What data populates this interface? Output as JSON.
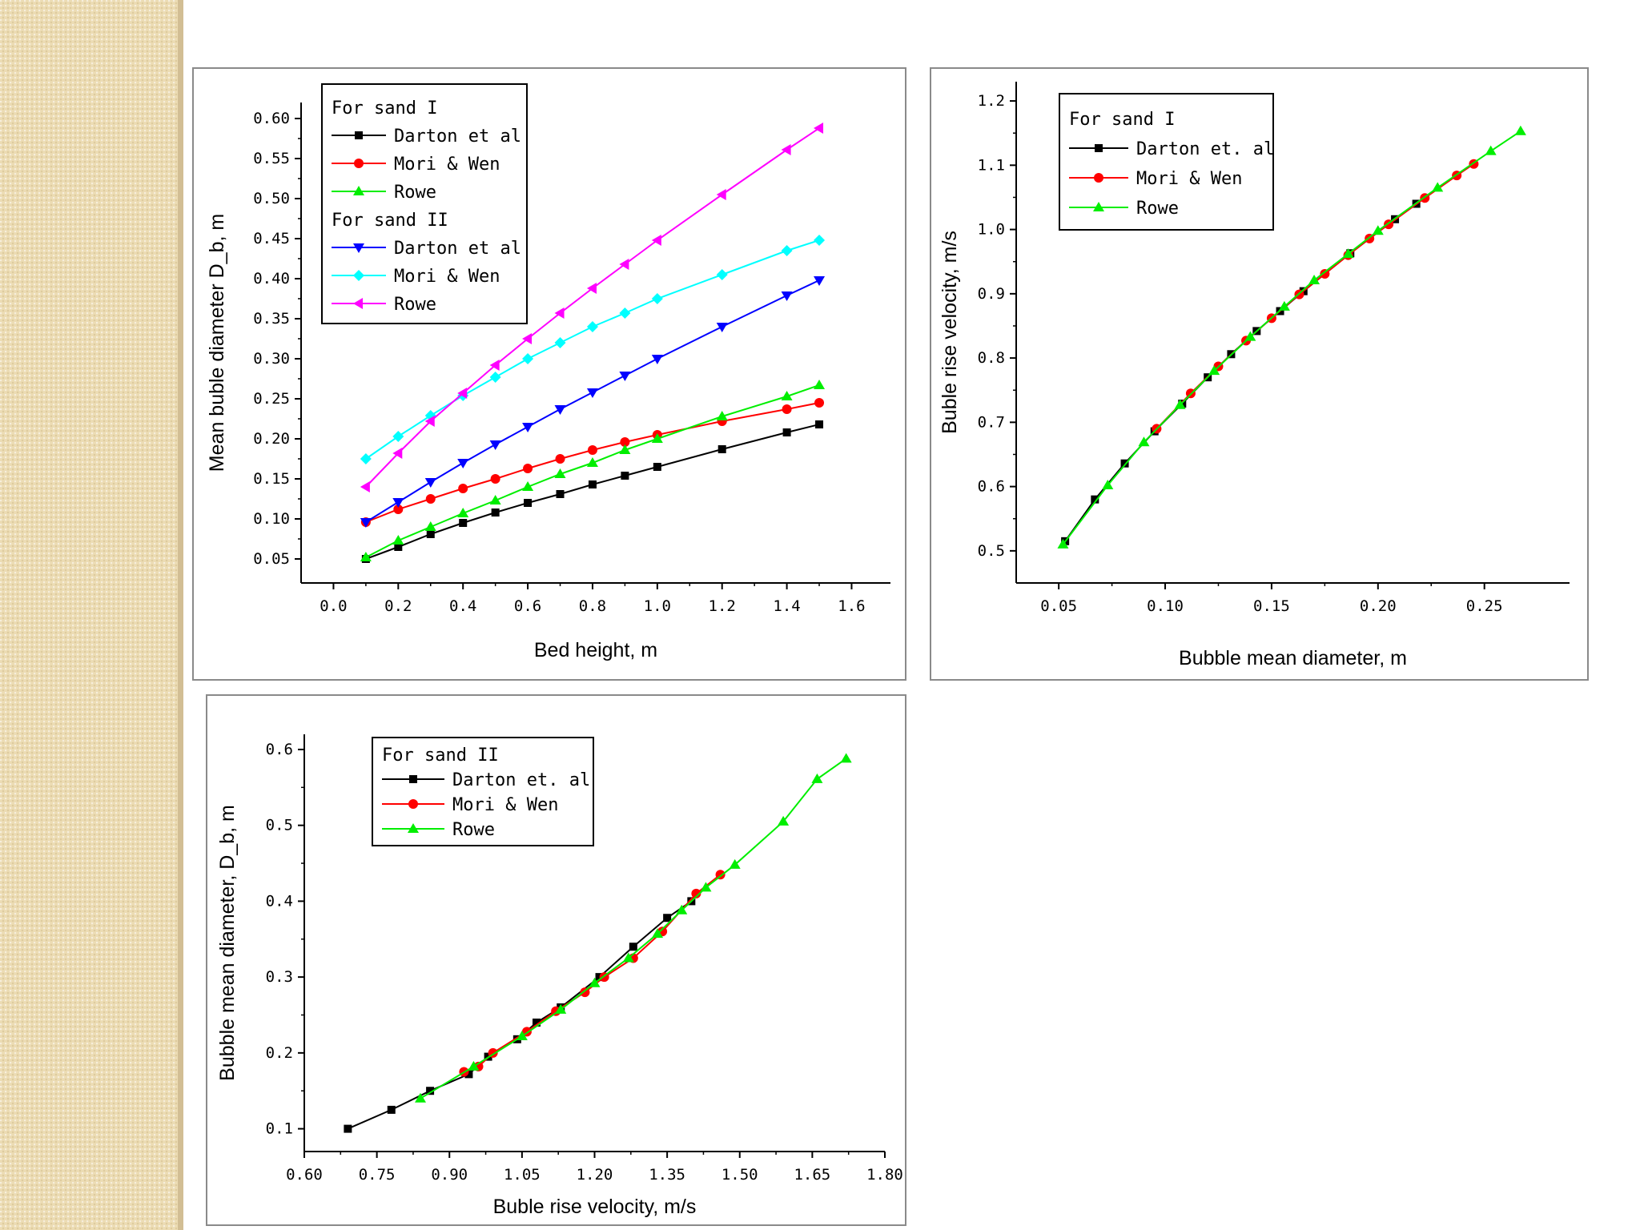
{
  "chart_data": [
    {
      "type": "line",
      "id": "chart1",
      "xlabel": "Bed height, m",
      "ylabel": "Mean buble diameter  D_b, m",
      "xlim": [
        -0.1,
        1.72
      ],
      "ylim": [
        0.02,
        0.62
      ],
      "xticks": [
        "0.0",
        "0.2",
        "0.4",
        "0.6",
        "0.8",
        "1.0",
        "1.2",
        "1.4",
        "1.6"
      ],
      "yticks": [
        "0.05",
        "0.10",
        "0.15",
        "0.20",
        "0.25",
        "0.30",
        "0.35",
        "0.40",
        "0.45",
        "0.50",
        "0.55",
        "0.60"
      ],
      "legend_groups": [
        "For sand I",
        "For sand II"
      ],
      "x": [
        0.1,
        0.2,
        0.3,
        0.4,
        0.5,
        0.6,
        0.7,
        0.8,
        0.9,
        1.0,
        1.2,
        1.4,
        1.5
      ],
      "series": [
        {
          "name": "Darton et al",
          "group": "For sand I",
          "color": "#000000",
          "marker": "square",
          "values": [
            0.05,
            0.065,
            0.081,
            0.095,
            0.108,
            0.12,
            0.131,
            0.143,
            0.154,
            0.165,
            0.187,
            0.208,
            0.218
          ]
        },
        {
          "name": "Mori & Wen",
          "group": "For sand I",
          "color": "#ff0000",
          "marker": "circle",
          "values": [
            0.096,
            0.112,
            0.125,
            0.138,
            0.15,
            0.163,
            0.175,
            0.186,
            0.196,
            0.205,
            0.222,
            0.237,
            0.245
          ]
        },
        {
          "name": "Rowe",
          "group": "For sand I",
          "color": "#00ee00",
          "marker": "triangle-up",
          "values": [
            0.052,
            0.073,
            0.09,
            0.107,
            0.123,
            0.14,
            0.156,
            0.17,
            0.186,
            0.2,
            0.228,
            0.253,
            0.267
          ]
        },
        {
          "name": "Darton et al",
          "group": "For sand II",
          "color": "#0000ff",
          "marker": "triangle-down",
          "values": [
            0.096,
            0.121,
            0.146,
            0.17,
            0.193,
            0.215,
            0.237,
            0.258,
            0.279,
            0.3,
            0.34,
            0.379,
            0.398
          ]
        },
        {
          "name": "Mori & Wen",
          "group": "For sand II",
          "color": "#00ffff",
          "marker": "diamond",
          "values": [
            0.175,
            0.203,
            0.229,
            0.254,
            0.277,
            0.3,
            0.32,
            0.34,
            0.357,
            0.375,
            0.405,
            0.435,
            0.448
          ]
        },
        {
          "name": "Rowe",
          "group": "For sand II",
          "color": "#ff00ff",
          "marker": "triangle-left",
          "values": [
            0.14,
            0.182,
            0.222,
            0.257,
            0.292,
            0.325,
            0.357,
            0.388,
            0.418,
            0.448,
            0.505,
            0.561,
            0.588
          ]
        }
      ]
    },
    {
      "type": "line",
      "id": "chart2",
      "xlabel": "Bubble mean diameter, m",
      "ylabel": "Buble rise velocity, m/s",
      "xlim": [
        0.03,
        0.29
      ],
      "ylim": [
        0.45,
        1.23
      ],
      "xticks": [
        "0.05",
        "0.10",
        "0.15",
        "0.20",
        "0.25"
      ],
      "yticks": [
        "0.5",
        "0.6",
        "0.7",
        "0.8",
        "0.9",
        "1.0",
        "1.1",
        "1.2"
      ],
      "legend_groups": [
        "For sand I"
      ],
      "series": [
        {
          "name": "Darton et. al",
          "color": "#000000",
          "marker": "square",
          "x": [
            0.053,
            0.067,
            0.081,
            0.095,
            0.108,
            0.12,
            0.131,
            0.143,
            0.154,
            0.165,
            0.187,
            0.208,
            0.218
          ],
          "values": [
            0.515,
            0.58,
            0.636,
            0.686,
            0.729,
            0.77,
            0.806,
            0.842,
            0.873,
            0.904,
            0.963,
            1.016,
            1.04
          ]
        },
        {
          "name": "Mori & Wen",
          "color": "#ff0000",
          "marker": "circle",
          "x": [
            0.096,
            0.112,
            0.125,
            0.138,
            0.15,
            0.163,
            0.175,
            0.186,
            0.196,
            0.205,
            0.222,
            0.237,
            0.245
          ],
          "values": [
            0.69,
            0.745,
            0.787,
            0.827,
            0.862,
            0.899,
            0.931,
            0.96,
            0.986,
            1.008,
            1.049,
            1.084,
            1.102
          ]
        },
        {
          "name": "Rowe",
          "color": "#00ee00",
          "marker": "triangle-up",
          "x": [
            0.052,
            0.073,
            0.09,
            0.107,
            0.123,
            0.14,
            0.156,
            0.17,
            0.186,
            0.2,
            0.228,
            0.253,
            0.267
          ],
          "values": [
            0.51,
            0.602,
            0.669,
            0.727,
            0.78,
            0.833,
            0.88,
            0.921,
            0.962,
            0.998,
            1.065,
            1.122,
            1.153
          ]
        }
      ]
    },
    {
      "type": "line",
      "id": "chart3",
      "xlabel": "Buble rise velocity, m/s",
      "ylabel": "Bubble mean diameter, D_b, m",
      "xlim": [
        0.6,
        1.8
      ],
      "ylim": [
        0.07,
        0.62
      ],
      "xticks": [
        "0.60",
        "0.75",
        "0.90",
        "1.05",
        "1.20",
        "1.35",
        "1.50",
        "1.65",
        "1.80"
      ],
      "yticks": [
        "0.1",
        "0.2",
        "0.3",
        "0.4",
        "0.5",
        "0.6"
      ],
      "legend_groups": [
        "For sand II"
      ],
      "series": [
        {
          "name": "Darton et. al",
          "color": "#000000",
          "marker": "square",
          "x": [
            0.69,
            0.78,
            0.86,
            0.94,
            0.98,
            1.04,
            1.08,
            1.13,
            1.21,
            1.28,
            1.35,
            1.4
          ],
          "values": [
            0.1,
            0.125,
            0.15,
            0.172,
            0.195,
            0.218,
            0.24,
            0.26,
            0.3,
            0.34,
            0.378,
            0.4
          ]
        },
        {
          "name": "Mori & Wen",
          "color": "#ff0000",
          "marker": "circle",
          "x": [
            0.93,
            0.96,
            0.99,
            1.06,
            1.12,
            1.18,
            1.22,
            1.28,
            1.34,
            1.41,
            1.46
          ],
          "values": [
            0.175,
            0.182,
            0.2,
            0.228,
            0.255,
            0.28,
            0.3,
            0.325,
            0.36,
            0.41,
            0.435
          ]
        },
        {
          "name": "Rowe",
          "color": "#00ee00",
          "marker": "triangle-up",
          "x": [
            0.84,
            0.95,
            1.05,
            1.13,
            1.2,
            1.27,
            1.33,
            1.38,
            1.43,
            1.49,
            1.59,
            1.66,
            1.72
          ],
          "values": [
            0.14,
            0.182,
            0.222,
            0.257,
            0.292,
            0.325,
            0.357,
            0.388,
            0.418,
            0.448,
            0.505,
            0.561,
            0.588
          ]
        }
      ]
    }
  ]
}
